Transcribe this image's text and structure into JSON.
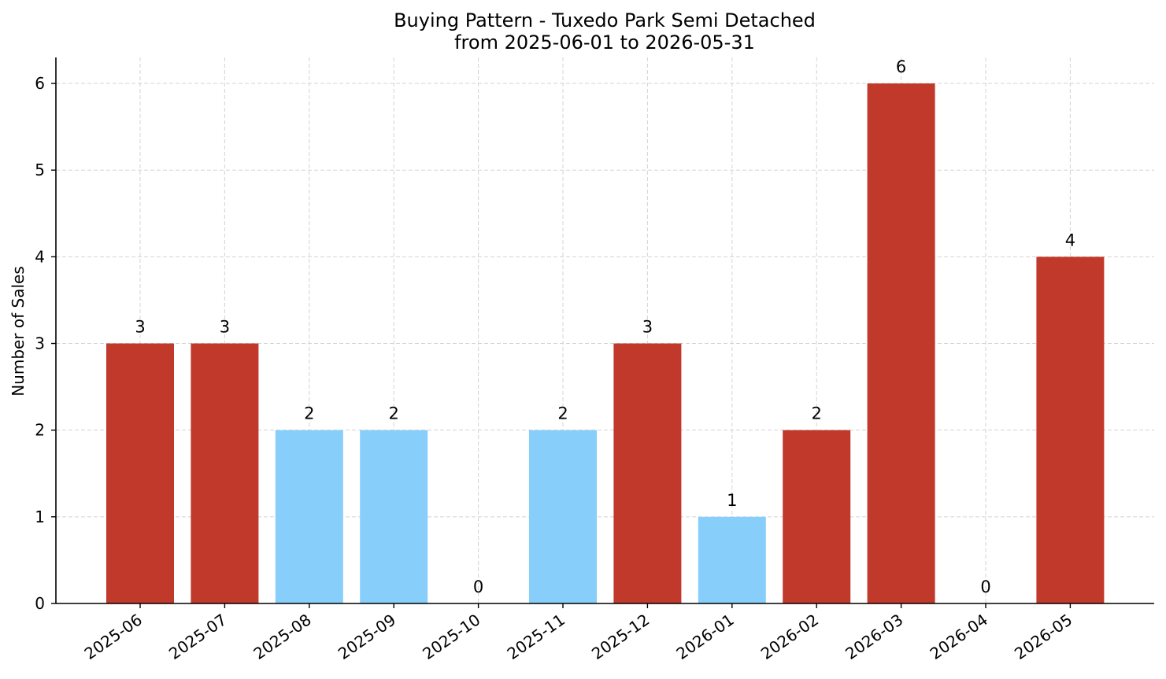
{
  "chart_data": {
    "type": "bar",
    "title": "Buying Pattern - Tuxedo Park Semi Detached",
    "subtitle": "from 2025-06-01 to 2026-05-31",
    "xlabel": "",
    "ylabel": "Number of Sales",
    "categories": [
      "2025-06",
      "2025-07",
      "2025-08",
      "2025-09",
      "2025-10",
      "2025-11",
      "2025-12",
      "2026-01",
      "2026-02",
      "2026-03",
      "2026-04",
      "2026-05"
    ],
    "values": [
      3,
      3,
      2,
      2,
      0,
      2,
      3,
      1,
      2,
      6,
      0,
      4
    ],
    "bar_colors": [
      "#c0392b",
      "#c0392b",
      "#87cefa",
      "#87cefa",
      "#87cefa",
      "#87cefa",
      "#c0392b",
      "#87cefa",
      "#c0392b",
      "#c0392b",
      "#87cefa",
      "#c0392b"
    ],
    "ylim": [
      0,
      6.3
    ],
    "yticks": [
      "0",
      "1",
      "2",
      "3",
      "4",
      "5",
      "6"
    ],
    "grid": true,
    "legend": "none"
  }
}
